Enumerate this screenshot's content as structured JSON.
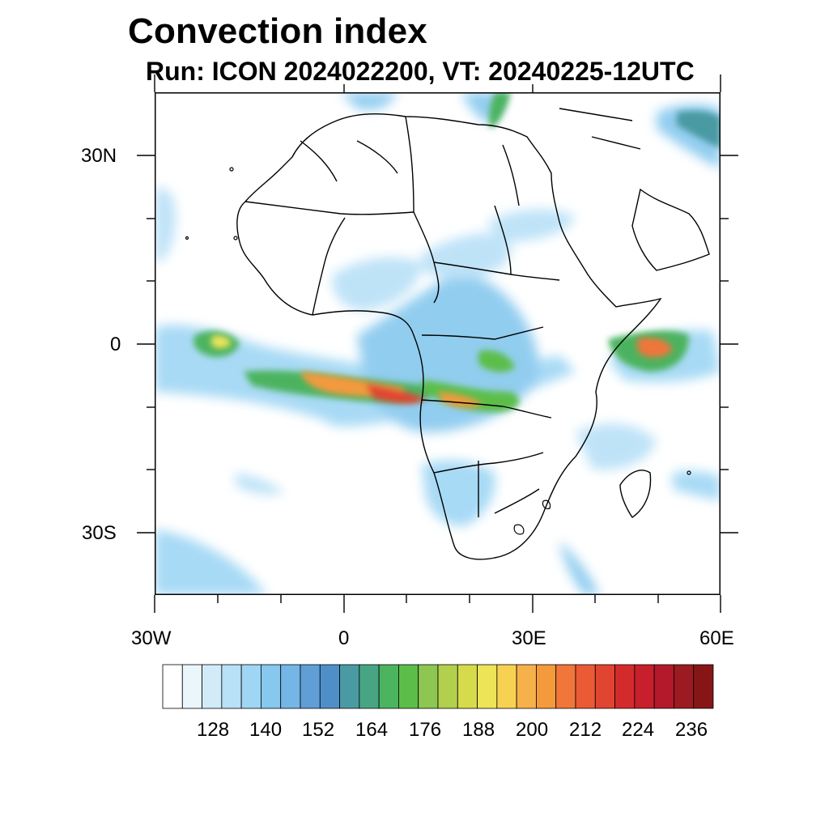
{
  "title": "Convection index",
  "subtitle": "Run: ICON 2024022200,  VT: 20240225-12UTC",
  "map": {
    "region": "Africa",
    "lat_labels": [
      "30N",
      "0",
      "30S"
    ],
    "lon_labels": [
      "30W",
      "0",
      "30E",
      "60E"
    ],
    "colors": {
      "frame": "#000000",
      "coastline": "#000000",
      "background": "#ffffff"
    }
  },
  "colorbar": {
    "tick_labels": [
      "128",
      "140",
      "152",
      "164",
      "176",
      "188",
      "200",
      "212",
      "224",
      "236"
    ],
    "colors": [
      "#ffffff",
      "#eaf5fc",
      "#d2ebf9",
      "#b8e0f7",
      "#9ed6f4",
      "#86c8ee",
      "#74b6e6",
      "#5f9fd6",
      "#4f8fc8",
      "#4a9aa3",
      "#48a583",
      "#4cb35f",
      "#5cbe48",
      "#8dc651",
      "#b2cf4e",
      "#d6db4c",
      "#ede458",
      "#f7d252",
      "#f6b14a",
      "#f49a3c",
      "#f0763a",
      "#ea5a35",
      "#e14430",
      "#d52a2c",
      "#c71f2b",
      "#b3192b",
      "#9c1a22",
      "#861616"
    ]
  }
}
